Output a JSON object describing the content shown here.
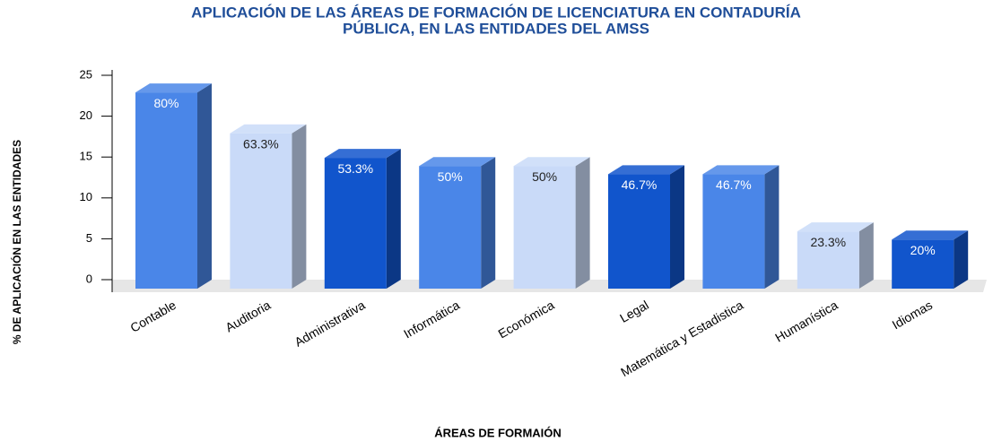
{
  "chart_data": {
    "type": "bar3d",
    "title": [
      "APLICACIÓN DE LAS ÁREAS DE FORMACIÓN DE LICENCIATURA EN CONTADURÍA",
      "PÚBLICA, EN LAS ENTIDADES DEL AMSS"
    ],
    "y_label": "% DE APLICACIÓN EN LAS ENTIDADES",
    "x_label": "ÁREAS DE FORMAIÓN",
    "categories": [
      "Contable",
      "Auditoria",
      "Administrativa",
      "Informática",
      "Económica",
      "Legal",
      "Matemática y Estadistica",
      "Humanística",
      "Idiomas"
    ],
    "values": [
      24,
      19,
      16,
      15,
      15,
      14,
      14,
      7,
      6
    ],
    "value_labels": [
      "80%",
      "63.3%",
      "53.3%",
      "50%",
      "50%",
      "46.7%",
      "46.7%",
      "23.3%",
      "20%"
    ],
    "colors": [
      "#4a86e8",
      "#c9daf8",
      "#1155cc",
      "#4a86e8",
      "#c9daf8",
      "#1155cc",
      "#4a86e8",
      "#c9daf8",
      "#1155cc"
    ],
    "ylim": [
      0,
      25
    ],
    "yticks": [
      0,
      5,
      10,
      15,
      20,
      25
    ]
  }
}
